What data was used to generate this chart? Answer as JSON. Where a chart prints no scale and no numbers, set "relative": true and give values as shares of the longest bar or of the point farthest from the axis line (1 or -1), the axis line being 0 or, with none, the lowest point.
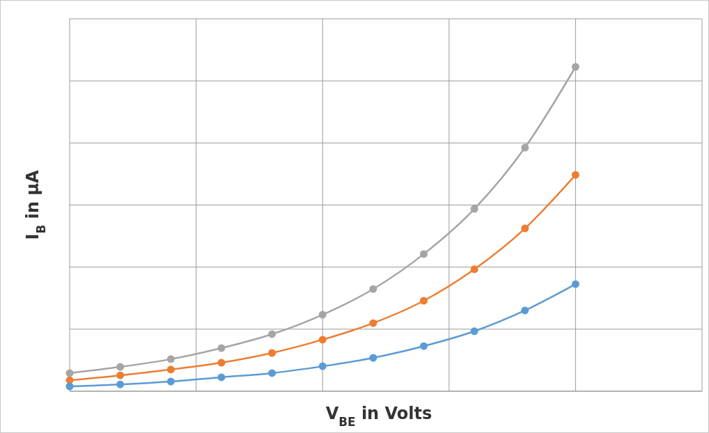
{
  "chart_data": {
    "type": "line",
    "relative": true,
    "xlabel": "V$_{BE}$ in Volts",
    "ylabel": "I$_{B}$ in μA",
    "categories": [
      null,
      null,
      null,
      null,
      null,
      null,
      null,
      null,
      null,
      null,
      null
    ],
    "series": [
      {
        "color": "#a5a5a5",
        "values": [
          0.056,
          0.075,
          0.099,
          0.133,
          0.176,
          0.236,
          0.315,
          0.423,
          0.562,
          0.751,
          1
        ]
      },
      {
        "color": "#ed7d31",
        "values": [
          0.034,
          0.049,
          0.067,
          0.088,
          0.118,
          0.159,
          0.21,
          0.279,
          0.376,
          0.502,
          0.667
        ]
      },
      {
        "color": "#5b9bd5",
        "values": [
          0.015,
          0.021,
          0.03,
          0.043,
          0.056,
          0.077,
          0.103,
          0.139,
          0.185,
          0.249,
          0.33
        ]
      }
    ],
    "grid": true,
    "marker": "circle",
    "line_style": "solid"
  }
}
